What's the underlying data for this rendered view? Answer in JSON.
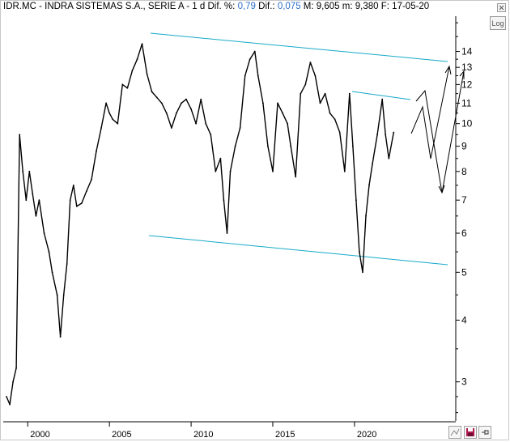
{
  "header": {
    "ticker": "IDR.MC",
    "name": "INDRA SISTEMAS S.A., SERIE A",
    "timeframe": "1 d",
    "dif_pct_label": "Dif. %:",
    "dif_pct": "0,79",
    "dif_label": "Dif.:",
    "dif": "0,075",
    "max_label": "M:",
    "max": "9,605",
    "min_label": "m:",
    "min": "9,380",
    "date_label": "F:",
    "date": "17-05-20"
  },
  "log_button": "Log",
  "colors": {
    "price": "#000000",
    "channel": "#17a9c9",
    "axis": "#000000"
  },
  "icons": [
    "close-icon",
    "draw-icon",
    "save-icon",
    "pin-icon"
  ],
  "chart_data": {
    "type": "line",
    "scale": "log",
    "xlim": [
      1998.5,
      2026.2
    ],
    "ylim": [
      2.5,
      16.5
    ],
    "x_ticks": [
      2000,
      2005,
      2010,
      2015,
      2020
    ],
    "x_tick_labels": [
      "2000",
      "2005",
      "2010",
      "2015",
      "2020"
    ],
    "y_ticks": [
      3,
      4,
      5,
      6,
      7,
      8,
      9,
      10,
      11,
      12,
      13,
      14
    ],
    "y_tick_labels": [
      "3",
      "4",
      "5",
      "6",
      "7",
      "8",
      "9",
      "10",
      "11",
      "12",
      "13",
      "14"
    ],
    "series": [
      {
        "x": [
          1998.7,
          1998.9,
          1999.1,
          1999.3,
          1999.5,
          1999.7,
          1999.9,
          2000.1,
          2000.3,
          2000.5,
          2000.7,
          2001.0,
          2001.3,
          2001.5,
          2001.8,
          2002.0,
          2002.2,
          2002.4,
          2002.6,
          2002.8,
          2003.0,
          2003.3,
          2003.6,
          2003.9,
          2004.2,
          2004.5,
          2004.8,
          2005.0,
          2005.2,
          2005.5,
          2005.8,
          2006.1,
          2006.4,
          2006.7,
          2007.0,
          2007.3,
          2007.6,
          2007.9,
          2008.2,
          2008.5,
          2008.8,
          2009.1,
          2009.4,
          2009.7,
          2010.0,
          2010.3,
          2010.6,
          2010.9,
          2011.2,
          2011.5,
          2011.8,
          2012.0,
          2012.2,
          2012.4,
          2012.7,
          2013.0,
          2013.3,
          2013.6,
          2013.9,
          2014.1,
          2014.4,
          2014.7,
          2015.0,
          2015.3,
          2015.6,
          2015.9,
          2016.1,
          2016.4,
          2016.7,
          2017.0,
          2017.3,
          2017.6,
          2017.9,
          2018.2,
          2018.5,
          2018.8,
          2019.1,
          2019.4,
          2019.7,
          2019.9,
          2020.1,
          2020.3,
          2020.5,
          2020.7,
          2020.9,
          2021.1,
          2021.4,
          2021.7,
          2021.9,
          2022.1,
          2022.4
        ],
        "values": [
          2.8,
          2.7,
          3.0,
          3.2,
          9.5,
          8.0,
          7.0,
          8.0,
          7.2,
          6.5,
          7.0,
          6.0,
          5.5,
          5.0,
          4.5,
          3.7,
          4.5,
          5.2,
          7.0,
          7.5,
          6.8,
          6.9,
          7.3,
          7.7,
          8.8,
          9.8,
          11.0,
          10.5,
          10.2,
          10.0,
          12.0,
          11.8,
          12.8,
          13.5,
          14.5,
          12.6,
          11.6,
          11.3,
          11.0,
          10.5,
          9.8,
          10.5,
          11.0,
          11.2,
          10.7,
          10.0,
          11.2,
          10.0,
          9.5,
          8.0,
          8.5,
          7.0,
          6.0,
          8.0,
          9.0,
          9.8,
          12.5,
          13.5,
          14.0,
          12.5,
          11.0,
          9.0,
          8.0,
          11.0,
          10.5,
          10.0,
          9.0,
          7.8,
          11.5,
          12.0,
          13.3,
          12.5,
          11.0,
          11.5,
          10.5,
          10.2,
          9.6,
          8.0,
          11.5,
          9.0,
          7.0,
          5.5,
          5.0,
          6.5,
          7.5,
          8.3,
          9.5,
          11.2,
          9.5,
          8.5,
          9.6
        ]
      }
    ]
  }
}
